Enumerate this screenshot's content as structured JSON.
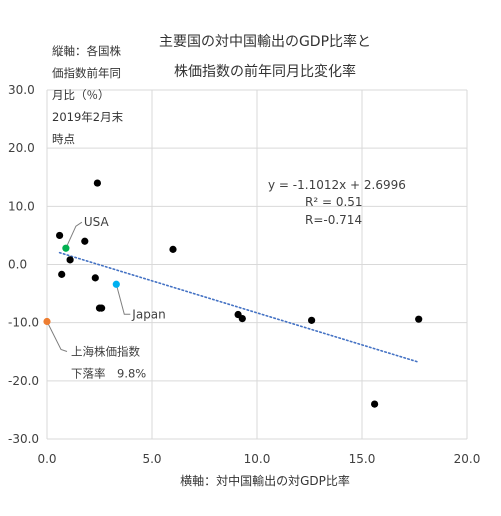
{
  "chart_data": {
    "type": "scatter",
    "title": [
      "主要国の対中国輸出のGDP比率と",
      "株価指数の前年同月比変化率"
    ],
    "ylabel_lines": [
      "縦軸：各国株",
      "価指数前年同",
      "月比（％）",
      "2019年2月末",
      "時点"
    ],
    "xlabel": "横軸：対中国輸出の対GDP比率",
    "xlim": [
      0.0,
      20.0
    ],
    "ylim": [
      -30.0,
      30.0
    ],
    "xticks": [
      "0.0",
      "5.0",
      "10.0",
      "15.0",
      "20.0"
    ],
    "yticks": [
      "30.0",
      "20.0",
      "10.0",
      "0.0",
      "-10.0",
      "-20.0",
      "-30.0"
    ],
    "grid": true,
    "series": [
      {
        "color": "#000000",
        "points": [
          [
            0.6,
            5.0
          ],
          [
            0.7,
            -1.7
          ],
          [
            1.1,
            0.8
          ],
          [
            1.8,
            4.0
          ],
          [
            2.4,
            14.0
          ],
          [
            2.3,
            -2.3
          ],
          [
            2.5,
            -7.5
          ],
          [
            2.6,
            -7.5
          ],
          [
            6.0,
            2.6
          ],
          [
            9.1,
            -8.6
          ],
          [
            9.3,
            -9.3
          ],
          [
            12.6,
            -9.6
          ],
          [
            15.6,
            -24.0
          ],
          [
            17.7,
            -9.4
          ]
        ]
      },
      {
        "color": "#00b050",
        "points": [
          [
            0.9,
            2.8
          ]
        ]
      },
      {
        "color": "#00b0f0",
        "points": [
          [
            3.3,
            -3.4
          ]
        ]
      },
      {
        "color": "#ed7d31",
        "points": [
          [
            0.0,
            -9.8
          ]
        ]
      }
    ],
    "trendline": {
      "slope": -1.1012,
      "intercept": 2.6996,
      "x_range": [
        0.6,
        17.7
      ],
      "color": "#4472c4",
      "style": "dotted"
    },
    "annotations": {
      "equation": "y = -1.1012x + 2.6996",
      "r2": "R² = 0.51",
      "r": "R=-0.714",
      "usa": "USA",
      "japan": "Japan",
      "shanghai_line1": "上海株価指数",
      "shanghai_line2": "下落率　9.8%"
    }
  }
}
